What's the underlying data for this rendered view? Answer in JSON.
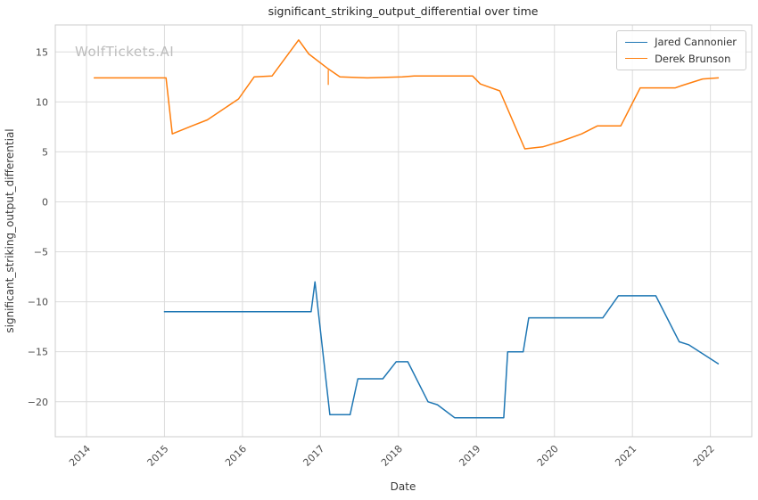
{
  "watermark": "WolfTickets.AI",
  "chart_data": {
    "type": "line",
    "title": "significant_striking_output_differential over time",
    "xlabel": "Date",
    "ylabel": "significant_striking_output_differential",
    "xlim": [
      2013.6,
      2022.53
    ],
    "ylim": [
      -23.5,
      17.7
    ],
    "x_ticks": [
      2014,
      2015,
      2016,
      2017,
      2018,
      2019,
      2020,
      2021,
      2022
    ],
    "y_ticks": [
      -20,
      -15,
      -10,
      -5,
      0,
      5,
      10,
      15
    ],
    "grid": true,
    "legend_position": "upper right",
    "colors": {
      "grid": "#dcdcdc",
      "spine": "#cccccc",
      "background": "#ffffff"
    },
    "series": [
      {
        "name": "Jared Cannonier",
        "color": "#1f77b4",
        "points": [
          [
            2015.0,
            -11.0
          ],
          [
            2016.88,
            -11.0
          ],
          [
            2016.93,
            -8.0
          ],
          [
            2017.12,
            -21.3
          ],
          [
            2017.38,
            -21.3
          ],
          [
            2017.48,
            -17.7
          ],
          [
            2017.8,
            -17.7
          ],
          [
            2017.97,
            -16.0
          ],
          [
            2018.12,
            -16.0
          ],
          [
            2018.38,
            -20.0
          ],
          [
            2018.5,
            -20.3
          ],
          [
            2018.72,
            -21.6
          ],
          [
            2019.35,
            -21.6
          ],
          [
            2019.4,
            -15.0
          ],
          [
            2019.6,
            -15.0
          ],
          [
            2019.67,
            -11.6
          ],
          [
            2020.62,
            -11.6
          ],
          [
            2020.82,
            -9.4
          ],
          [
            2021.3,
            -9.4
          ],
          [
            2021.6,
            -14.0
          ],
          [
            2021.72,
            -14.3
          ],
          [
            2022.1,
            -16.2
          ]
        ]
      },
      {
        "name": "Derek Brunson",
        "color": "#ff7f0e",
        "points": [
          [
            2014.1,
            12.4
          ],
          [
            2015.02,
            12.4
          ],
          [
            2015.1,
            6.8
          ],
          [
            2015.35,
            7.6
          ],
          [
            2015.55,
            8.2
          ],
          [
            2015.95,
            10.3
          ],
          [
            2016.15,
            12.5
          ],
          [
            2016.38,
            12.6
          ],
          [
            2016.72,
            16.2
          ],
          [
            2016.85,
            14.8
          ],
          [
            2017.1,
            13.3
          ],
          [
            2017.25,
            12.5
          ],
          [
            2017.6,
            12.4
          ],
          [
            2018.05,
            12.5
          ],
          [
            2018.2,
            12.6
          ],
          [
            2018.95,
            12.6
          ],
          [
            2019.05,
            11.8
          ],
          [
            2019.3,
            11.1
          ],
          [
            2019.62,
            5.3
          ],
          [
            2019.85,
            5.5
          ],
          [
            2020.1,
            6.1
          ],
          [
            2020.35,
            6.8
          ],
          [
            2020.55,
            7.6
          ],
          [
            2020.85,
            7.6
          ],
          [
            2021.1,
            11.4
          ],
          [
            2021.55,
            11.4
          ],
          [
            2021.62,
            11.6
          ],
          [
            2021.9,
            12.3
          ],
          [
            2022.1,
            12.4
          ]
        ]
      }
    ],
    "annotations": [
      {
        "type": "vtick",
        "x": 2017.1,
        "y1": 11.7,
        "y2": 13.2,
        "color": "#ff7f0e"
      }
    ]
  }
}
